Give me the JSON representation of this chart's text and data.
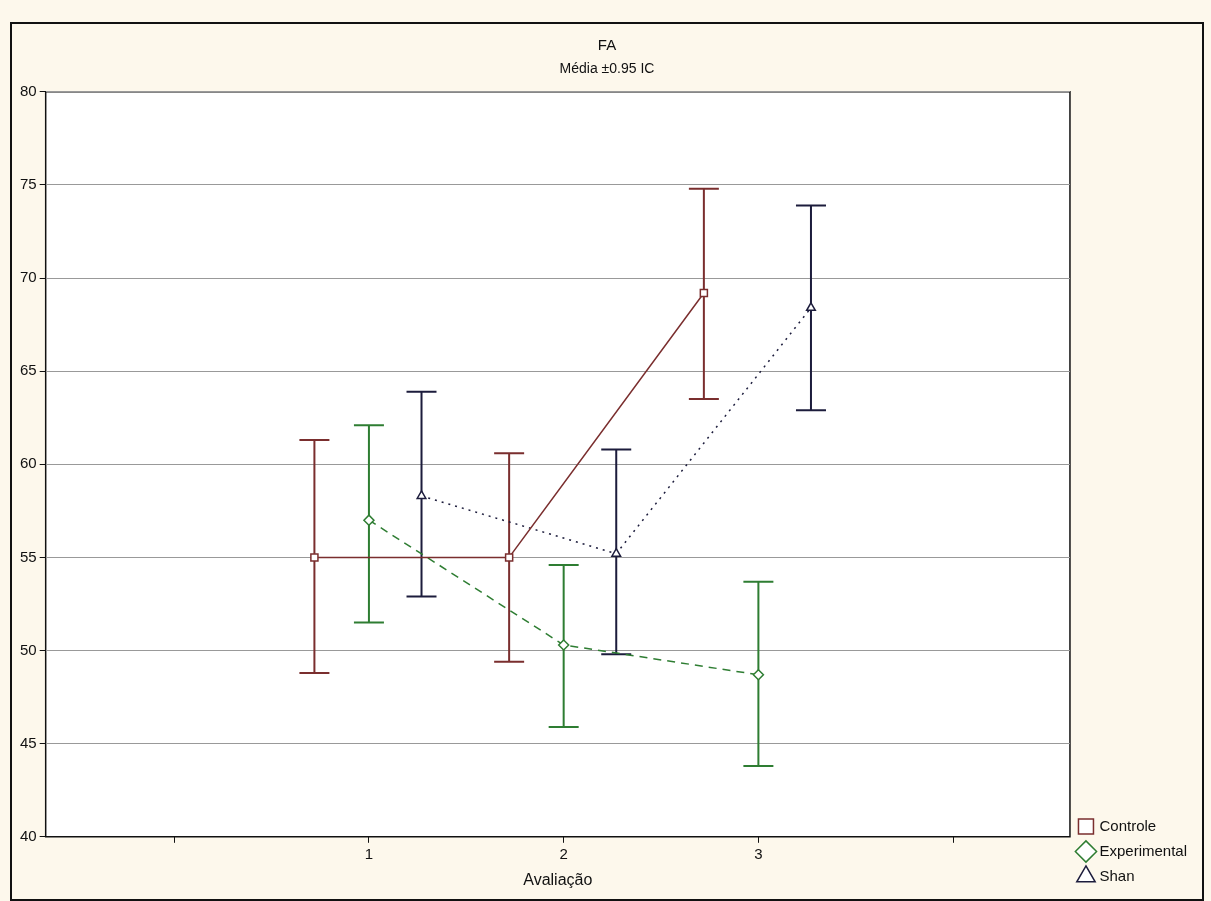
{
  "chart_data": {
    "type": "line",
    "title": "FA",
    "subtitle": "Média ±0.95 IC",
    "xlabel": "Avaliação",
    "xlim": [
      -0.66,
      4.6
    ],
    "xticks": [
      {
        "value": 0,
        "label": null
      },
      1,
      2,
      3,
      {
        "value": 4,
        "label": null
      }
    ],
    "ylim": [
      40,
      80
    ],
    "yticks": [
      40,
      45,
      50,
      55,
      60,
      65,
      70,
      75,
      80
    ],
    "grid": "y",
    "legend": "bottom right",
    "series": [
      {
        "name": "Controle",
        "color": "#7a2e2e",
        "marker": "square",
        "line_style": "solid",
        "x": [
          0.72,
          1.72,
          2.72
        ],
        "values": [
          55.0,
          55.0,
          69.2
        ],
        "errors": [
          [
            48.8,
            61.3
          ],
          [
            49.4,
            60.6
          ],
          [
            63.5,
            74.8
          ]
        ]
      },
      {
        "name": "Experimental",
        "color": "#2e7d32",
        "marker": "diamond",
        "line_style": "dashed",
        "x": [
          1,
          2,
          3
        ],
        "values": [
          57.0,
          50.3,
          48.7
        ],
        "errors": [
          [
            51.5,
            62.1
          ],
          [
            45.9,
            54.6
          ],
          [
            43.8,
            53.7
          ]
        ]
      },
      {
        "name": "Shan",
        "color": "#1c1c3c",
        "marker": "triangle",
        "line_style": "dotted",
        "x": [
          1.27,
          2.27,
          3.27
        ],
        "values": [
          58.3,
          55.2,
          68.4
        ],
        "errors": [
          [
            52.9,
            63.9
          ],
          [
            49.8,
            60.8
          ],
          [
            62.9,
            73.9
          ]
        ]
      }
    ]
  }
}
